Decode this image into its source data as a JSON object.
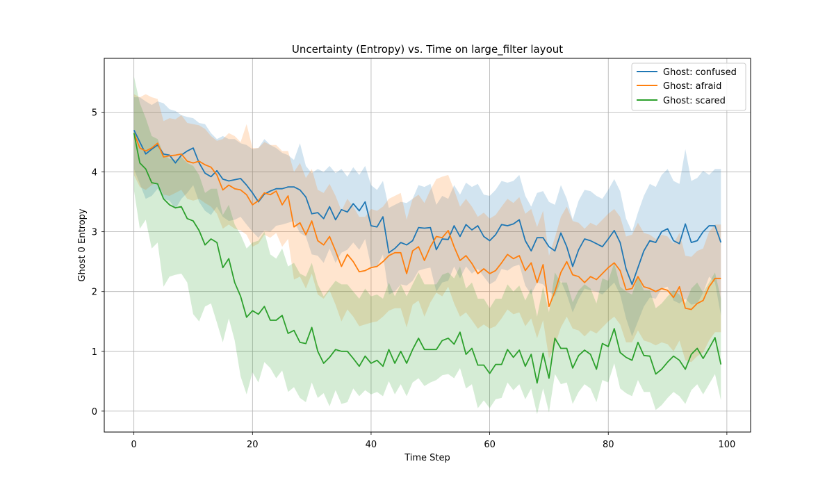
{
  "chart_data": {
    "type": "line",
    "title": "Uncertainty (Entropy) vs. Time on large_filter layout",
    "xlabel": "Time Step",
    "ylabel": "Ghost 0 Entropy",
    "xlim": [
      -5,
      104
    ],
    "ylim": [
      -0.35,
      5.9
    ],
    "xticks": [
      0,
      20,
      40,
      60,
      80,
      100
    ],
    "yticks": [
      0,
      1,
      2,
      3,
      4,
      5
    ],
    "grid": true,
    "legend_position": "upper right",
    "x": [
      0,
      1,
      2,
      3,
      4,
      5,
      6,
      7,
      8,
      9,
      10,
      11,
      12,
      13,
      14,
      15,
      16,
      17,
      18,
      19,
      20,
      21,
      22,
      23,
      24,
      25,
      26,
      27,
      28,
      29,
      30,
      31,
      32,
      33,
      34,
      35,
      36,
      37,
      38,
      39,
      40,
      41,
      42,
      43,
      44,
      45,
      46,
      47,
      48,
      49,
      50,
      51,
      52,
      53,
      54,
      55,
      56,
      57,
      58,
      59,
      60,
      61,
      62,
      63,
      64,
      65,
      66,
      67,
      68,
      69,
      70,
      71,
      72,
      73,
      74,
      75,
      76,
      77,
      78,
      79,
      80,
      81,
      82,
      83,
      84,
      85,
      86,
      87,
      88,
      89,
      90,
      91,
      92,
      93,
      94,
      95,
      96,
      97,
      98,
      99
    ],
    "series": [
      {
        "name": "Ghost: confused",
        "color": "#1f77b4",
        "band_opacity": 0.2,
        "values": [
          4.7,
          4.5,
          4.3,
          4.38,
          4.45,
          4.3,
          4.28,
          4.15,
          4.28,
          4.35,
          4.4,
          4.15,
          3.98,
          3.92,
          4.02,
          3.88,
          3.85,
          3.87,
          3.89,
          3.78,
          3.65,
          3.5,
          3.63,
          3.68,
          3.72,
          3.72,
          3.75,
          3.75,
          3.7,
          3.58,
          3.3,
          3.32,
          3.22,
          3.42,
          3.2,
          3.37,
          3.33,
          3.47,
          3.35,
          3.5,
          3.1,
          3.08,
          3.25,
          2.65,
          2.72,
          2.82,
          2.78,
          2.85,
          3.07,
          3.06,
          3.07,
          2.7,
          2.88,
          2.87,
          3.1,
          2.92,
          3.12,
          3.03,
          3.1,
          2.92,
          2.85,
          2.95,
          3.12,
          3.1,
          3.13,
          3.2,
          2.85,
          2.68,
          2.9,
          2.9,
          2.75,
          2.68,
          2.98,
          2.75,
          2.42,
          2.7,
          2.88,
          2.85,
          2.8,
          2.75,
          2.88,
          3.02,
          2.82,
          2.38,
          2.12,
          2.4,
          2.68,
          2.85,
          2.82,
          3.0,
          3.05,
          2.85,
          2.8,
          3.13,
          2.82,
          2.85,
          3.0,
          3.1,
          3.1,
          2.82
        ],
        "upper": [
          5.25,
          5.25,
          5.18,
          5.12,
          5.18,
          5.15,
          5.05,
          5.02,
          4.95,
          4.92,
          4.9,
          4.82,
          4.8,
          4.65,
          4.55,
          4.6,
          4.55,
          4.55,
          4.48,
          4.45,
          4.38,
          4.4,
          4.55,
          4.45,
          4.4,
          4.32,
          4.28,
          4.2,
          4.48,
          4.1,
          3.98,
          4.05,
          4.0,
          4.1,
          3.98,
          4.05,
          3.92,
          4.08,
          3.95,
          4.1,
          3.78,
          3.7,
          3.85,
          3.4,
          3.45,
          3.5,
          3.48,
          3.55,
          3.78,
          3.75,
          3.8,
          3.45,
          3.6,
          3.55,
          3.78,
          3.62,
          3.82,
          3.75,
          3.8,
          3.62,
          3.6,
          3.7,
          3.85,
          3.82,
          3.85,
          3.95,
          3.6,
          3.42,
          3.65,
          3.68,
          3.5,
          3.45,
          3.78,
          3.55,
          3.2,
          3.52,
          3.7,
          3.68,
          3.6,
          3.55,
          3.7,
          3.88,
          3.68,
          3.22,
          3.0,
          3.32,
          3.6,
          3.8,
          3.75,
          3.95,
          4.05,
          3.85,
          3.8,
          4.38,
          3.85,
          3.9,
          4.02,
          3.95,
          4.05,
          4.05
        ],
        "lower": [
          4.05,
          3.8,
          3.55,
          3.6,
          3.72,
          3.55,
          3.52,
          3.38,
          3.55,
          3.65,
          3.78,
          3.5,
          3.35,
          3.28,
          3.42,
          3.25,
          3.18,
          3.2,
          3.25,
          3.12,
          3.0,
          2.9,
          3.02,
          3.0,
          3.1,
          3.12,
          3.15,
          3.18,
          2.98,
          2.92,
          2.62,
          2.6,
          2.48,
          2.72,
          2.48,
          2.65,
          2.7,
          2.82,
          2.7,
          2.88,
          2.42,
          2.42,
          2.62,
          1.95,
          2.0,
          2.12,
          2.1,
          2.18,
          2.35,
          2.38,
          2.4,
          2.0,
          2.15,
          2.18,
          2.42,
          2.22,
          2.42,
          2.3,
          2.38,
          2.25,
          2.12,
          2.18,
          2.38,
          2.35,
          2.42,
          2.45,
          2.1,
          1.95,
          2.15,
          2.12,
          2.0,
          1.92,
          2.18,
          1.95,
          1.65,
          1.88,
          2.05,
          2.02,
          2.0,
          1.95,
          2.05,
          2.15,
          1.95,
          1.55,
          1.25,
          1.5,
          1.75,
          1.9,
          1.88,
          2.05,
          2.08,
          1.85,
          1.8,
          1.88,
          1.78,
          1.8,
          1.98,
          2.25,
          2.15,
          1.6
        ]
      },
      {
        "name": "Ghost: afraid",
        "color": "#ff7f0e",
        "band_opacity": 0.2,
        "values": [
          4.65,
          4.4,
          4.35,
          4.4,
          4.48,
          4.25,
          4.27,
          4.28,
          4.3,
          4.18,
          4.15,
          4.18,
          4.12,
          4.08,
          3.95,
          3.7,
          3.78,
          3.72,
          3.7,
          3.62,
          3.45,
          3.52,
          3.65,
          3.62,
          3.68,
          3.45,
          3.6,
          3.08,
          3.15,
          2.95,
          3.18,
          2.85,
          2.78,
          2.92,
          2.68,
          2.42,
          2.62,
          2.5,
          2.33,
          2.35,
          2.4,
          2.42,
          2.5,
          2.6,
          2.65,
          2.65,
          2.3,
          2.68,
          2.75,
          2.52,
          2.75,
          2.92,
          2.9,
          3.02,
          2.75,
          2.52,
          2.6,
          2.47,
          2.3,
          2.38,
          2.3,
          2.35,
          2.48,
          2.62,
          2.55,
          2.6,
          2.35,
          2.48,
          2.15,
          2.45,
          1.75,
          2.0,
          2.32,
          2.5,
          2.28,
          2.25,
          2.15,
          2.25,
          2.2,
          2.3,
          2.4,
          2.48,
          2.35,
          2.03,
          2.05,
          2.25,
          2.08,
          2.05,
          2.0,
          2.05,
          2.02,
          1.9,
          2.08,
          1.72,
          1.7,
          1.8,
          1.85,
          2.08,
          2.22,
          2.22
        ],
        "upper": [
          5.3,
          5.25,
          5.3,
          5.25,
          5.22,
          4.85,
          4.9,
          4.88,
          4.95,
          4.82,
          4.8,
          4.78,
          4.72,
          4.6,
          4.52,
          4.55,
          4.65,
          4.6,
          4.5,
          4.8,
          4.4,
          4.4,
          4.5,
          4.45,
          4.45,
          4.35,
          4.35,
          4.0,
          4.15,
          3.9,
          4.05,
          3.7,
          3.65,
          3.8,
          3.6,
          3.35,
          3.55,
          3.42,
          3.25,
          3.25,
          3.38,
          3.35,
          3.42,
          3.55,
          3.6,
          3.65,
          3.2,
          3.55,
          3.62,
          3.48,
          3.7,
          3.88,
          3.92,
          3.95,
          3.7,
          3.42,
          3.55,
          3.42,
          3.25,
          3.32,
          3.22,
          3.28,
          3.42,
          3.55,
          3.48,
          3.58,
          3.3,
          3.38,
          3.08,
          3.35,
          2.6,
          2.9,
          3.25,
          3.42,
          3.18,
          3.15,
          3.05,
          3.15,
          3.1,
          3.2,
          3.3,
          3.38,
          3.25,
          2.92,
          2.95,
          3.15,
          2.98,
          2.95,
          2.88,
          2.95,
          2.92,
          2.8,
          2.98,
          2.6,
          2.58,
          2.68,
          2.72,
          3.0,
          3.12,
          3.12
        ],
        "lower": [
          3.95,
          3.75,
          3.7,
          3.78,
          3.82,
          3.62,
          3.6,
          3.65,
          3.7,
          3.55,
          3.52,
          3.55,
          3.48,
          3.42,
          3.3,
          3.05,
          3.12,
          3.05,
          3.02,
          2.95,
          2.75,
          2.8,
          2.95,
          2.9,
          2.98,
          2.75,
          2.88,
          2.2,
          2.25,
          2.05,
          2.3,
          1.95,
          1.88,
          2.02,
          1.78,
          1.5,
          1.7,
          1.58,
          1.42,
          1.45,
          1.48,
          1.5,
          1.58,
          1.68,
          1.72,
          1.72,
          1.4,
          1.78,
          1.85,
          1.58,
          1.82,
          1.98,
          1.92,
          2.08,
          1.8,
          1.58,
          1.65,
          1.52,
          1.38,
          1.45,
          1.38,
          1.42,
          1.55,
          1.7,
          1.62,
          1.65,
          1.42,
          1.55,
          1.22,
          1.52,
          0.88,
          1.1,
          1.4,
          1.58,
          1.38,
          1.35,
          1.25,
          1.35,
          1.3,
          1.4,
          1.5,
          1.58,
          1.45,
          1.15,
          1.15,
          1.35,
          1.18,
          1.15,
          1.1,
          1.15,
          1.12,
          1.0,
          1.18,
          0.85,
          0.82,
          0.92,
          0.98,
          1.18,
          1.32,
          1.32
        ]
      },
      {
        "name": "Ghost: scared",
        "color": "#2ca02c",
        "band_opacity": 0.2,
        "values": [
          4.65,
          4.15,
          4.05,
          3.82,
          3.8,
          3.55,
          3.45,
          3.4,
          3.42,
          3.22,
          3.18,
          3.02,
          2.78,
          2.88,
          2.82,
          2.4,
          2.55,
          2.15,
          1.92,
          1.57,
          1.68,
          1.62,
          1.75,
          1.52,
          1.52,
          1.6,
          1.3,
          1.35,
          1.15,
          1.13,
          1.4,
          1.0,
          0.8,
          0.9,
          1.03,
          1.0,
          1.0,
          0.88,
          0.75,
          0.92,
          0.8,
          0.85,
          0.75,
          1.03,
          0.8,
          1.0,
          0.8,
          1.03,
          1.22,
          1.03,
          1.03,
          1.03,
          1.18,
          1.22,
          1.12,
          1.32,
          0.95,
          1.05,
          0.77,
          0.77,
          0.63,
          0.78,
          0.78,
          1.03,
          0.9,
          1.02,
          0.75,
          0.95,
          0.47,
          0.97,
          0.55,
          1.22,
          1.05,
          1.05,
          0.72,
          0.93,
          1.02,
          0.95,
          0.7,
          1.13,
          1.08,
          1.38,
          0.98,
          0.9,
          0.85,
          1.15,
          0.93,
          0.92,
          0.62,
          0.7,
          0.82,
          0.92,
          0.85,
          0.7,
          0.95,
          1.05,
          0.88,
          1.05,
          1.23,
          0.78
        ],
        "upper": [
          5.6,
          5.15,
          4.9,
          4.6,
          4.55,
          4.3,
          4.22,
          4.2,
          4.25,
          4.15,
          4.1,
          3.95,
          3.65,
          3.72,
          3.72,
          3.28,
          3.45,
          3.12,
          2.95,
          2.72,
          2.82,
          2.85,
          3.0,
          2.62,
          2.55,
          2.72,
          2.42,
          2.48,
          2.3,
          2.25,
          2.48,
          2.12,
          1.92,
          2.05,
          2.18,
          2.12,
          2.12,
          2.0,
          1.88,
          2.05,
          1.92,
          1.95,
          1.88,
          2.15,
          1.92,
          2.12,
          1.92,
          2.12,
          2.32,
          2.12,
          2.12,
          2.12,
          2.28,
          2.32,
          2.22,
          2.42,
          2.05,
          2.15,
          1.88,
          1.88,
          1.72,
          1.88,
          1.88,
          2.12,
          2.0,
          2.1,
          1.85,
          2.05,
          1.58,
          2.08,
          1.65,
          2.32,
          2.15,
          2.15,
          1.82,
          2.02,
          2.12,
          2.05,
          1.8,
          2.22,
          2.18,
          2.48,
          2.08,
          2.0,
          1.95,
          2.25,
          2.02,
          2.02,
          1.72,
          1.8,
          1.92,
          2.02,
          1.95,
          1.8,
          2.05,
          2.15,
          1.98,
          2.15,
          2.32,
          1.88
        ],
        "lower": [
          3.7,
          3.05,
          3.2,
          2.72,
          2.82,
          2.08,
          2.25,
          2.28,
          2.3,
          2.15,
          1.62,
          1.5,
          1.75,
          1.8,
          1.48,
          1.15,
          1.55,
          1.18,
          0.58,
          0.28,
          0.65,
          0.48,
          0.82,
          0.72,
          0.55,
          0.68,
          0.32,
          0.4,
          0.22,
          0.15,
          0.48,
          0.22,
          0.3,
          0.08,
          0.35,
          0.12,
          0.15,
          0.38,
          0.25,
          0.35,
          0.28,
          0.32,
          0.25,
          0.5,
          0.28,
          0.45,
          0.25,
          0.48,
          0.55,
          0.42,
          0.48,
          0.52,
          0.6,
          0.62,
          0.55,
          0.72,
          0.38,
          0.45,
          0.05,
          0.18,
          0.05,
          0.2,
          0.22,
          0.48,
          0.35,
          0.45,
          0.2,
          0.38,
          -0.05,
          0.38,
          -0.02,
          0.62,
          0.45,
          0.48,
          0.12,
          0.32,
          0.45,
          0.38,
          0.15,
          0.52,
          0.48,
          0.8,
          0.38,
          0.3,
          0.25,
          0.52,
          0.32,
          0.32,
          0.02,
          0.1,
          0.22,
          0.32,
          0.25,
          0.12,
          0.35,
          0.45,
          0.28,
          0.45,
          0.62,
          0.18
        ]
      }
    ]
  }
}
